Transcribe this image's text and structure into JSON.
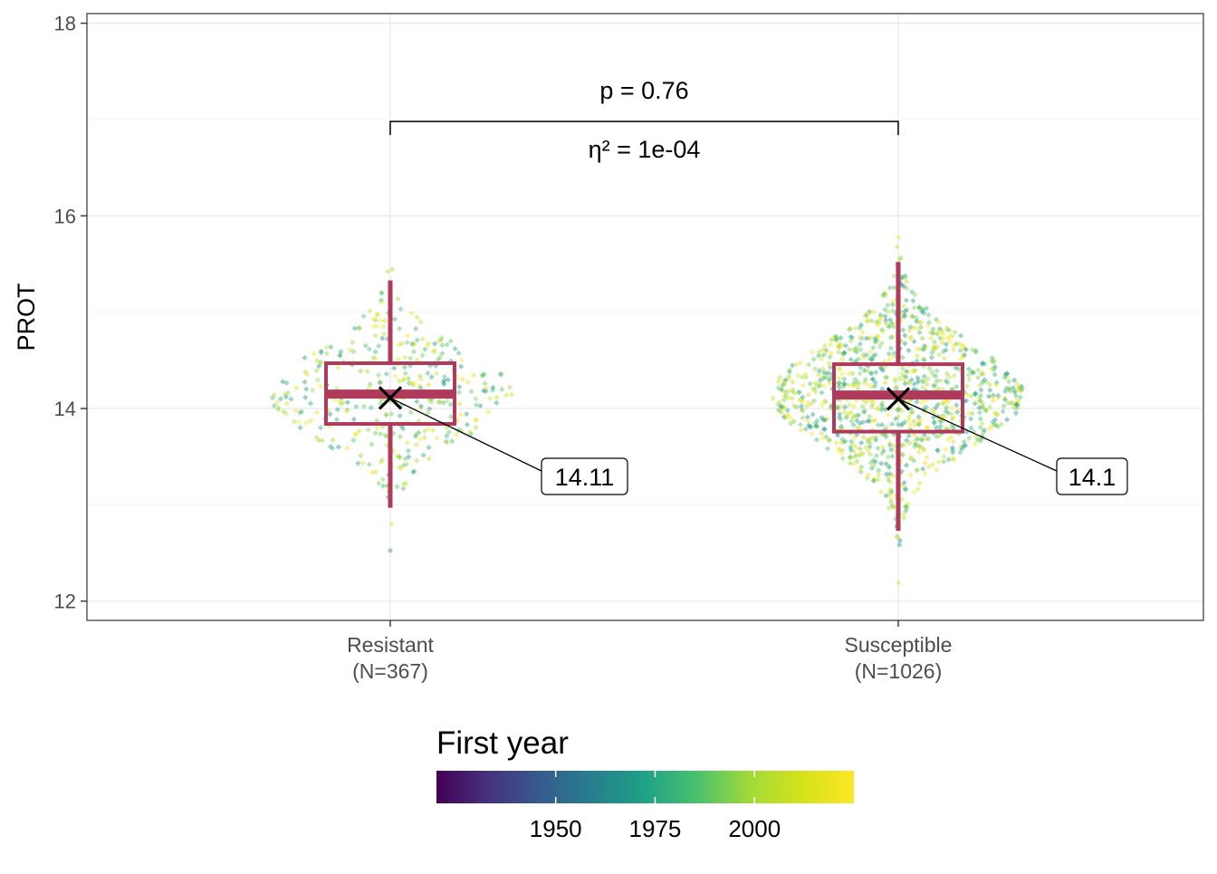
{
  "chart_data": {
    "type": "box",
    "ylabel": "PROT",
    "ylim": [
      11.8,
      18.1
    ],
    "yticks": [
      12,
      14,
      16,
      18
    ],
    "grid": true,
    "categories": [
      "Resistant\n(N=367)",
      "Susceptible\n(N=1026)"
    ],
    "category_lines": [
      [
        "Resistant",
        "(N=367)"
      ],
      [
        "Susceptible",
        "(N=1026)"
      ]
    ],
    "groups": [
      {
        "name": "Resistant",
        "n": 367,
        "min": 12.97,
        "q1": 13.84,
        "median": 14.15,
        "q3": 14.47,
        "max": 15.33,
        "mean": 14.11,
        "mean_label": "14.11"
      },
      {
        "name": "Susceptible",
        "n": 1026,
        "min": 12.73,
        "q1": 13.76,
        "median": 14.14,
        "q3": 14.46,
        "max": 15.52,
        "mean": 14.1,
        "mean_label": "14.1"
      }
    ],
    "comparison": {
      "p_label": "p = 0.76",
      "effect_label": "η² = 1e-04",
      "bracket_y": 16.98
    },
    "colorbar": {
      "title": "First year",
      "palette": "viridis",
      "range": [
        1920,
        2025
      ],
      "ticks": [
        1950,
        1975,
        2000
      ],
      "tick_labels": [
        "1950",
        "1975",
        "2000"
      ]
    },
    "colors": {
      "box": "#B03A5B",
      "mean_marker": "#000000",
      "grid": "#EBEBEB",
      "panel_border": "#333333",
      "axis_text": "#4D4D4D"
    }
  }
}
